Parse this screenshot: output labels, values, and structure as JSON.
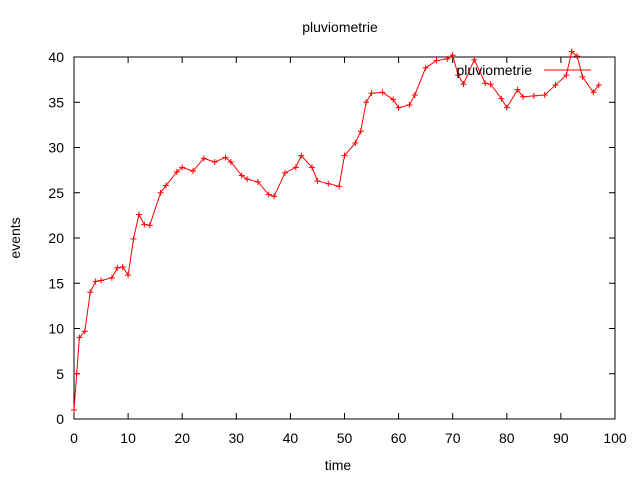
{
  "chart_data": {
    "type": "line",
    "title": "pluviometrie",
    "xlabel": "time",
    "ylabel": "events",
    "xlim": [
      0,
      100
    ],
    "ylim": [
      0,
      40
    ],
    "x_ticks": [
      0,
      10,
      20,
      30,
      40,
      50,
      60,
      70,
      80,
      90,
      100
    ],
    "y_ticks": [
      0,
      5,
      10,
      15,
      20,
      25,
      30,
      35,
      40
    ],
    "grid": false,
    "legend_position": "top-right",
    "series": [
      {
        "name": "pluviometrie",
        "color": "#ff0000",
        "marker": "plus",
        "x": [
          0,
          0.5,
          1,
          2,
          3,
          4,
          5,
          7,
          8,
          9,
          10,
          11,
          12,
          13,
          14,
          16,
          17,
          19,
          20,
          22,
          24,
          26,
          28,
          29,
          31,
          32,
          34,
          36,
          37,
          39,
          41,
          42,
          44,
          45,
          47,
          49,
          50,
          52,
          53,
          54,
          55,
          57,
          59,
          60,
          62,
          63,
          65,
          67,
          69,
          70,
          71,
          72,
          74,
          76,
          77,
          79,
          80,
          82,
          83,
          85,
          87,
          89,
          91,
          92,
          93,
          94,
          96,
          97
        ],
        "y": [
          1,
          5,
          9,
          9.7,
          14,
          15.2,
          15.3,
          15.6,
          16.7,
          16.8,
          15.9,
          19.9,
          22.6,
          21.5,
          21.4,
          25,
          25.8,
          27.3,
          27.8,
          27.4,
          28.8,
          28.4,
          28.9,
          28.4,
          26.9,
          26.5,
          26.2,
          24.8,
          24.6,
          27.2,
          27.8,
          29.1,
          27.8,
          26.3,
          26,
          25.7,
          29.1,
          30.5,
          31.8,
          35,
          36,
          36.1,
          35.3,
          34.4,
          34.7,
          35.8,
          38.8,
          39.6,
          39.8,
          40.2,
          38,
          37,
          39.7,
          37.1,
          37,
          35.4,
          34.4,
          36.4,
          35.6,
          35.7,
          35.8,
          36.9,
          38,
          40.6,
          40.1,
          37.8,
          36.1,
          36.9
        ]
      }
    ]
  }
}
